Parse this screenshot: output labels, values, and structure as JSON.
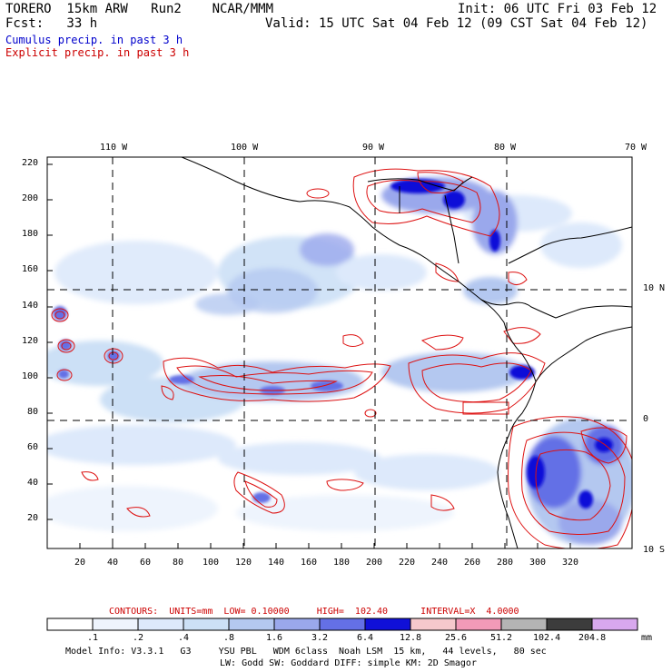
{
  "header": {
    "model_title": "TORERO  15km ARW   Run2    NCAR/MMM",
    "init": "Init: 06 UTC Fri 03 Feb 12",
    "fcst": "Fcst:   33 h",
    "valid": "Valid: 15 UTC Sat 04 Feb 12 (09 CST Sat 04 Feb 12)",
    "cumulus_label": "Cumulus precip. in past 3 h",
    "explicit_label": "Explicit precip. in past 3 h"
  },
  "colors": {
    "cumulus": "#0000cc",
    "explicit": "#cc0000"
  },
  "map": {
    "top_lon_labels": [
      "110 W",
      "100 W",
      "90 W",
      "80 W",
      "70 W"
    ],
    "right_lat_labels": [
      "10 N",
      "0",
      "10 S"
    ],
    "y_ticks": [
      "20",
      "40",
      "60",
      "80",
      "100",
      "120",
      "140",
      "160",
      "180",
      "200",
      "220"
    ],
    "x_ticks": [
      "20",
      "40",
      "60",
      "80",
      "100",
      "120",
      "140",
      "160",
      "180",
      "200",
      "220",
      "240",
      "260",
      "280",
      "300",
      "320"
    ]
  },
  "contour_info": {
    "text": "CONTOURS:  UNITS=mm  LOW= 0.10000     HIGH=  102.40      INTERVAL=X  4.0000"
  },
  "colorbar": {
    "levels": [
      ".1",
      ".2",
      ".4",
      ".8",
      "1.6",
      "3.2",
      "6.4",
      "12.8",
      "25.6",
      "51.2",
      "102.4",
      "204.8"
    ],
    "units": "mm",
    "colors": [
      "#ffffff",
      "#eef4fd",
      "#dde9fb",
      "#cce0f6",
      "#b4c8f0",
      "#9aa8ec",
      "#6470e6",
      "#1010d8",
      "#f6c8cc",
      "#f29ab8",
      "#b4b4b4",
      "#3c3c3c",
      "#d8a8ee"
    ]
  },
  "footer": {
    "line1": "Model Info: V3.3.1   G3     YSU PBL   WDM 6class  Noah LSM  15 km,   44 levels,   80 sec",
    "line2": "LW: Godd SW: Goddard DIFF: simple KM: 2D Smagor"
  }
}
